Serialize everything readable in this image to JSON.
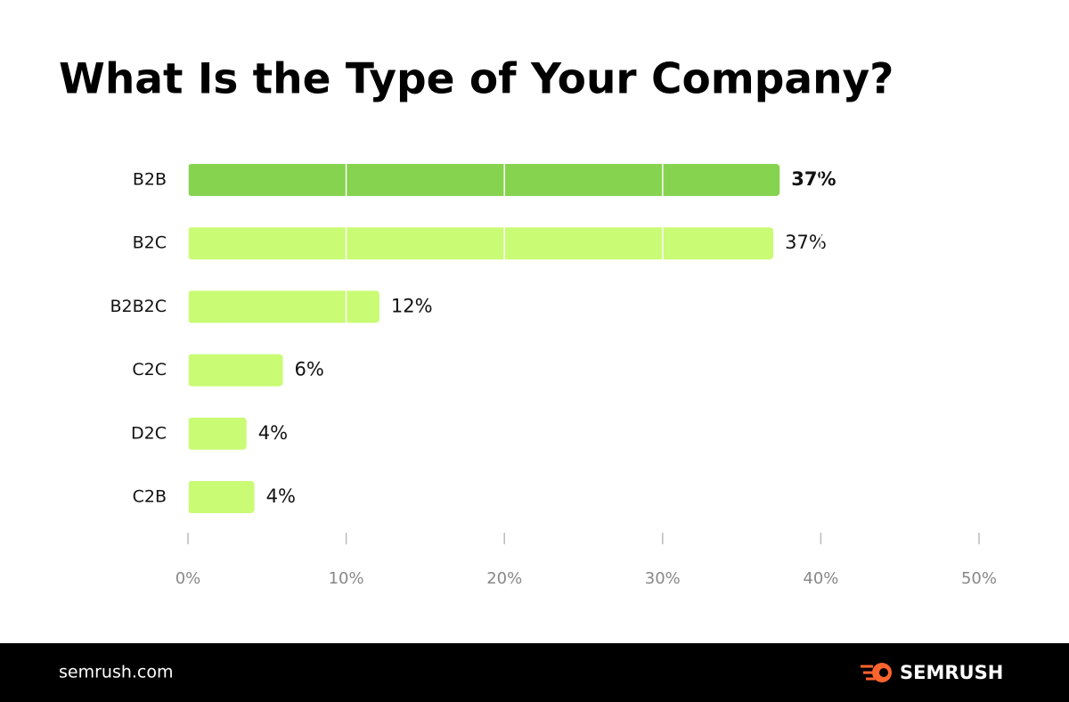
{
  "chart_data": {
    "type": "hbar",
    "title": "What Is the Type of Your Company?",
    "categories": [
      "B2B",
      "B2C",
      "B2B2C",
      "C2C",
      "D2C",
      "C2B"
    ],
    "values": [
      37.4,
      37.0,
      12.1,
      6.0,
      3.7,
      4.2
    ],
    "value_labels": [
      "37%",
      "37%",
      "12%",
      "6%",
      "4%",
      "4%"
    ],
    "colors": [
      "#86d34f",
      "#c9fb74",
      "#c9fb74",
      "#c9fb74",
      "#c9fb74",
      "#c9fb74"
    ],
    "xlim": [
      0,
      50
    ],
    "xticks": [
      {
        "value": 0,
        "label": "0%"
      },
      {
        "value": 10,
        "label": "10%"
      },
      {
        "value": 20,
        "label": "20%"
      },
      {
        "value": 30,
        "label": "30%"
      },
      {
        "value": 40,
        "label": "40%"
      },
      {
        "value": 50,
        "label": "50%"
      }
    ],
    "grid": true
  },
  "footer": {
    "site": "semrush.com",
    "brand": "SEMRUSH"
  }
}
